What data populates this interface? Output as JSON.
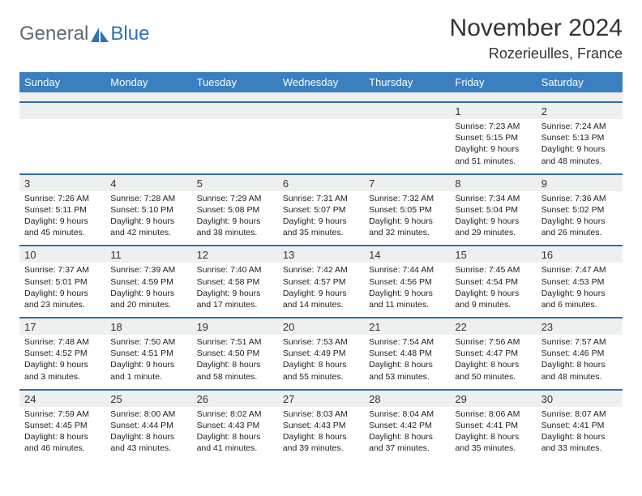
{
  "brand": {
    "word1": "General",
    "word2": "Blue",
    "sail_color": "#2f72b5",
    "text_gray": "#5f6b73"
  },
  "title": "November 2024",
  "subtitle": "Rozerieulles, France",
  "theme": {
    "header_bg": "#3a7fc0",
    "daynum_bg": "#eeefef",
    "rule_color": "#2f6fa9",
    "cell_bg": "#ffffff"
  },
  "day_headers": [
    "Sunday",
    "Monday",
    "Tuesday",
    "Wednesday",
    "Thursday",
    "Friday",
    "Saturday"
  ],
  "weeks": [
    [
      null,
      null,
      null,
      null,
      null,
      {
        "n": "1",
        "sr": "Sunrise: 7:23 AM",
        "ss": "Sunset: 5:15 PM",
        "d1": "Daylight: 9 hours",
        "d2": "and 51 minutes."
      },
      {
        "n": "2",
        "sr": "Sunrise: 7:24 AM",
        "ss": "Sunset: 5:13 PM",
        "d1": "Daylight: 9 hours",
        "d2": "and 48 minutes."
      }
    ],
    [
      {
        "n": "3",
        "sr": "Sunrise: 7:26 AM",
        "ss": "Sunset: 5:11 PM",
        "d1": "Daylight: 9 hours",
        "d2": "and 45 minutes."
      },
      {
        "n": "4",
        "sr": "Sunrise: 7:28 AM",
        "ss": "Sunset: 5:10 PM",
        "d1": "Daylight: 9 hours",
        "d2": "and 42 minutes."
      },
      {
        "n": "5",
        "sr": "Sunrise: 7:29 AM",
        "ss": "Sunset: 5:08 PM",
        "d1": "Daylight: 9 hours",
        "d2": "and 38 minutes."
      },
      {
        "n": "6",
        "sr": "Sunrise: 7:31 AM",
        "ss": "Sunset: 5:07 PM",
        "d1": "Daylight: 9 hours",
        "d2": "and 35 minutes."
      },
      {
        "n": "7",
        "sr": "Sunrise: 7:32 AM",
        "ss": "Sunset: 5:05 PM",
        "d1": "Daylight: 9 hours",
        "d2": "and 32 minutes."
      },
      {
        "n": "8",
        "sr": "Sunrise: 7:34 AM",
        "ss": "Sunset: 5:04 PM",
        "d1": "Daylight: 9 hours",
        "d2": "and 29 minutes."
      },
      {
        "n": "9",
        "sr": "Sunrise: 7:36 AM",
        "ss": "Sunset: 5:02 PM",
        "d1": "Daylight: 9 hours",
        "d2": "and 26 minutes."
      }
    ],
    [
      {
        "n": "10",
        "sr": "Sunrise: 7:37 AM",
        "ss": "Sunset: 5:01 PM",
        "d1": "Daylight: 9 hours",
        "d2": "and 23 minutes."
      },
      {
        "n": "11",
        "sr": "Sunrise: 7:39 AM",
        "ss": "Sunset: 4:59 PM",
        "d1": "Daylight: 9 hours",
        "d2": "and 20 minutes."
      },
      {
        "n": "12",
        "sr": "Sunrise: 7:40 AM",
        "ss": "Sunset: 4:58 PM",
        "d1": "Daylight: 9 hours",
        "d2": "and 17 minutes."
      },
      {
        "n": "13",
        "sr": "Sunrise: 7:42 AM",
        "ss": "Sunset: 4:57 PM",
        "d1": "Daylight: 9 hours",
        "d2": "and 14 minutes."
      },
      {
        "n": "14",
        "sr": "Sunrise: 7:44 AM",
        "ss": "Sunset: 4:56 PM",
        "d1": "Daylight: 9 hours",
        "d2": "and 11 minutes."
      },
      {
        "n": "15",
        "sr": "Sunrise: 7:45 AM",
        "ss": "Sunset: 4:54 PM",
        "d1": "Daylight: 9 hours",
        "d2": "and 9 minutes."
      },
      {
        "n": "16",
        "sr": "Sunrise: 7:47 AM",
        "ss": "Sunset: 4:53 PM",
        "d1": "Daylight: 9 hours",
        "d2": "and 6 minutes."
      }
    ],
    [
      {
        "n": "17",
        "sr": "Sunrise: 7:48 AM",
        "ss": "Sunset: 4:52 PM",
        "d1": "Daylight: 9 hours",
        "d2": "and 3 minutes."
      },
      {
        "n": "18",
        "sr": "Sunrise: 7:50 AM",
        "ss": "Sunset: 4:51 PM",
        "d1": "Daylight: 9 hours",
        "d2": "and 1 minute."
      },
      {
        "n": "19",
        "sr": "Sunrise: 7:51 AM",
        "ss": "Sunset: 4:50 PM",
        "d1": "Daylight: 8 hours",
        "d2": "and 58 minutes."
      },
      {
        "n": "20",
        "sr": "Sunrise: 7:53 AM",
        "ss": "Sunset: 4:49 PM",
        "d1": "Daylight: 8 hours",
        "d2": "and 55 minutes."
      },
      {
        "n": "21",
        "sr": "Sunrise: 7:54 AM",
        "ss": "Sunset: 4:48 PM",
        "d1": "Daylight: 8 hours",
        "d2": "and 53 minutes."
      },
      {
        "n": "22",
        "sr": "Sunrise: 7:56 AM",
        "ss": "Sunset: 4:47 PM",
        "d1": "Daylight: 8 hours",
        "d2": "and 50 minutes."
      },
      {
        "n": "23",
        "sr": "Sunrise: 7:57 AM",
        "ss": "Sunset: 4:46 PM",
        "d1": "Daylight: 8 hours",
        "d2": "and 48 minutes."
      }
    ],
    [
      {
        "n": "24",
        "sr": "Sunrise: 7:59 AM",
        "ss": "Sunset: 4:45 PM",
        "d1": "Daylight: 8 hours",
        "d2": "and 46 minutes."
      },
      {
        "n": "25",
        "sr": "Sunrise: 8:00 AM",
        "ss": "Sunset: 4:44 PM",
        "d1": "Daylight: 8 hours",
        "d2": "and 43 minutes."
      },
      {
        "n": "26",
        "sr": "Sunrise: 8:02 AM",
        "ss": "Sunset: 4:43 PM",
        "d1": "Daylight: 8 hours",
        "d2": "and 41 minutes."
      },
      {
        "n": "27",
        "sr": "Sunrise: 8:03 AM",
        "ss": "Sunset: 4:43 PM",
        "d1": "Daylight: 8 hours",
        "d2": "and 39 minutes."
      },
      {
        "n": "28",
        "sr": "Sunrise: 8:04 AM",
        "ss": "Sunset: 4:42 PM",
        "d1": "Daylight: 8 hours",
        "d2": "and 37 minutes."
      },
      {
        "n": "29",
        "sr": "Sunrise: 8:06 AM",
        "ss": "Sunset: 4:41 PM",
        "d1": "Daylight: 8 hours",
        "d2": "and 35 minutes."
      },
      {
        "n": "30",
        "sr": "Sunrise: 8:07 AM",
        "ss": "Sunset: 4:41 PM",
        "d1": "Daylight: 8 hours",
        "d2": "and 33 minutes."
      }
    ]
  ]
}
